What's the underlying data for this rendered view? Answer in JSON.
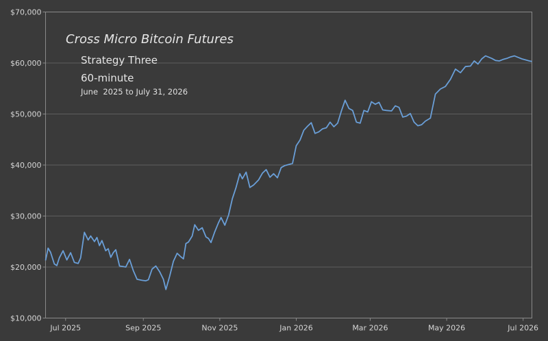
{
  "chart_data": {
    "type": "line",
    "title": "Cross Micro Bitcoin Futures",
    "subtitle": "Strategy Three",
    "timeframe": "60-minute",
    "date_range": "June  2025 to July 31, 2026",
    "xlabel": "",
    "ylabel": "",
    "y_tick_labels": [
      "$10,000",
      "$20,000",
      "$30,000",
      "$40,000",
      "$50,000",
      "$60,000",
      "$70,000"
    ],
    "y_ticks": [
      10000,
      20000,
      30000,
      40000,
      50000,
      60000,
      70000
    ],
    "ylim": [
      10000,
      70000
    ],
    "x_tick_labels": [
      "Jul 2025",
      "Sep 2025",
      "Nov 2025",
      "Jan 2026",
      "Mar 2026",
      "May 2026",
      "Jul 2026"
    ],
    "x_ticks": [
      "2025-07-01",
      "2025-09-01",
      "2025-11-01",
      "2026-01-01",
      "2026-03-01",
      "2026-05-01",
      "2026-07-01"
    ],
    "xlim": [
      "2025-06-15",
      "2026-07-08"
    ],
    "grid": {
      "y": true,
      "x": false
    },
    "colors": {
      "background": "#3a3a3a",
      "line": "#6a9fd8",
      "grid": "#5e5e5e",
      "text": "#d6d6d6"
    },
    "series": [
      {
        "x": [
          "2025-06-15",
          "2025-06-17",
          "2025-06-19",
          "2025-06-22",
          "2025-06-24",
          "2025-06-26",
          "2025-06-29",
          "2025-07-02",
          "2025-07-05",
          "2025-07-08",
          "2025-07-11",
          "2025-07-13",
          "2025-07-16",
          "2025-07-19",
          "2025-07-21",
          "2025-07-24",
          "2025-07-26",
          "2025-07-28",
          "2025-07-30",
          "2025-08-02",
          "2025-08-04",
          "2025-08-06",
          "2025-08-08",
          "2025-08-10",
          "2025-08-13",
          "2025-08-16",
          "2025-08-18",
          "2025-08-21",
          "2025-08-24",
          "2025-08-27",
          "2025-08-31",
          "2025-09-03",
          "2025-09-05",
          "2025-09-08",
          "2025-09-11",
          "2025-09-14",
          "2025-09-17",
          "2025-09-19",
          "2025-09-22",
          "2025-09-25",
          "2025-09-28",
          "2025-10-01",
          "2025-10-03",
          "2025-10-05",
          "2025-10-07",
          "2025-10-10",
          "2025-10-12",
          "2025-10-15",
          "2025-10-18",
          "2025-10-21",
          "2025-10-23",
          "2025-10-25",
          "2025-10-28",
          "2025-10-31",
          "2025-11-02",
          "2025-11-05",
          "2025-11-08",
          "2025-11-11",
          "2025-11-14",
          "2025-11-17",
          "2025-11-19",
          "2025-11-22",
          "2025-11-25",
          "2025-11-28",
          "2025-12-02",
          "2025-12-05",
          "2025-12-08",
          "2025-12-11",
          "2025-12-14",
          "2025-12-17",
          "2025-12-20",
          "2025-12-23",
          "2025-12-26",
          "2025-12-29",
          "2026-01-01",
          "2026-01-04",
          "2026-01-07",
          "2026-01-10",
          "2026-01-13",
          "2026-01-16",
          "2026-01-19",
          "2026-01-22",
          "2026-01-25",
          "2026-01-28",
          "2026-01-31",
          "2026-02-03",
          "2026-02-06",
          "2026-02-09",
          "2026-02-12",
          "2026-02-15",
          "2026-02-18",
          "2026-02-21",
          "2026-02-24",
          "2026-02-27",
          "2026-03-02",
          "2026-03-05",
          "2026-03-08",
          "2026-03-11",
          "2026-03-14",
          "2026-03-18",
          "2026-03-21",
          "2026-03-24",
          "2026-03-27",
          "2026-03-30",
          "2026-04-02",
          "2026-04-05",
          "2026-04-08",
          "2026-04-11",
          "2026-04-14",
          "2026-04-18",
          "2026-04-22",
          "2026-04-26",
          "2026-04-30",
          "2026-05-04",
          "2026-05-08",
          "2026-05-12",
          "2026-05-16",
          "2026-05-20",
          "2026-05-23",
          "2026-05-26",
          "2026-05-29",
          "2026-06-01",
          "2026-06-03",
          "2026-06-06",
          "2026-06-09",
          "2026-06-12",
          "2026-06-15",
          "2026-06-18",
          "2026-06-21",
          "2026-06-24",
          "2026-06-27",
          "2026-06-30",
          "2026-07-03",
          "2026-07-06",
          "2026-07-08"
        ],
        "y": [
          21300,
          23700,
          22900,
          20600,
          20300,
          21800,
          23200,
          21400,
          22800,
          20900,
          20700,
          21800,
          26800,
          25300,
          26100,
          25000,
          25800,
          24200,
          25200,
          23200,
          23600,
          21900,
          22800,
          23400,
          20200,
          20100,
          20000,
          21500,
          19300,
          17600,
          17400,
          17300,
          17500,
          19600,
          20200,
          19100,
          17600,
          15600,
          18200,
          21100,
          22700,
          22000,
          21600,
          24600,
          24900,
          26100,
          28300,
          27200,
          27700,
          25900,
          25600,
          24800,
          26900,
          28700,
          29700,
          28200,
          30200,
          33400,
          35600,
          38300,
          37300,
          38600,
          35600,
          36100,
          37100,
          38400,
          39100,
          37600,
          38300,
          37500,
          39500,
          39900,
          40100,
          40300,
          43800,
          44900,
          46800,
          47600,
          48300,
          46200,
          46500,
          47100,
          47300,
          48400,
          47500,
          48200,
          50600,
          52700,
          51100,
          50700,
          48400,
          48200,
          50700,
          50400,
          52400,
          51900,
          52300,
          50800,
          50700,
          50600,
          51600,
          51300,
          49400,
          49600,
          50100,
          48400,
          47700,
          47900,
          48600,
          49200,
          53900,
          54900,
          55400,
          56800,
          58800,
          58100,
          59300,
          59400,
          60400,
          59800,
          60800,
          61400,
          61200,
          60900,
          60500,
          60400,
          60700,
          60900,
          61200,
          61400,
          61100,
          60800,
          60600,
          60400,
          60300
        ]
      }
    ]
  }
}
